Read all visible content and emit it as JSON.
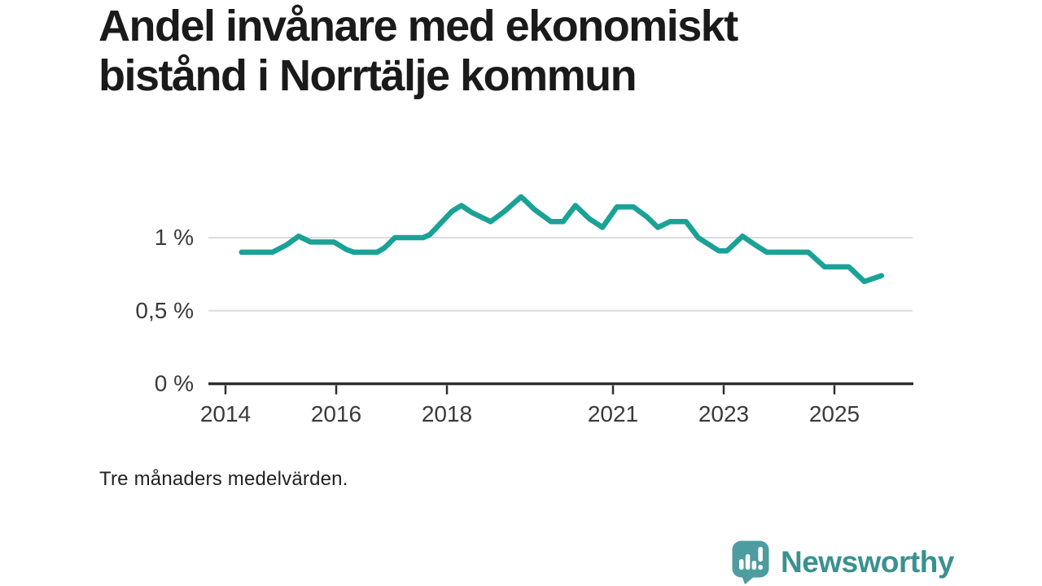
{
  "title": {
    "text": "Andel invånare med ekonomiskt bistånd i Norrtälje kommun",
    "lines": [
      "Andel invånare med ekonomiskt",
      "bistånd i Norrtälje kommun"
    ]
  },
  "footnote": "Tre månaders medelvärden.",
  "logo": {
    "wordmark": "Newsworthy",
    "icon": "speech-bubble-bar-chart-exclamation"
  },
  "colors": {
    "line": "#19A295",
    "grid": "#DCDCDC",
    "axis": "#2E2E2E",
    "tick_text": "#3A3A3A",
    "title_text": "#1A1A1A",
    "logo_bubble": "#4C9CA0",
    "logo_text": "#3A918F",
    "background": "#FFFFFF"
  },
  "chart_data": {
    "type": "line",
    "title": "Andel invånare med ekonomiskt bistånd i Norrtälje kommun",
    "note": "Tre månaders medelvärden.",
    "unit": "%",
    "grid": "horizontal",
    "legend": "none",
    "xlim": [
      2013.69,
      2026.4
    ],
    "ylim": [
      0,
      1.35
    ],
    "yticks": [
      {
        "value": 0,
        "label": "0 %"
      },
      {
        "value": 0.5,
        "label": "0,5 %"
      },
      {
        "value": 1,
        "label": "1 %"
      }
    ],
    "xticks": [
      {
        "value": 2014,
        "label": "2014"
      },
      {
        "value": 2016,
        "label": "2016"
      },
      {
        "value": 2018,
        "label": "2018"
      },
      {
        "value": 2021,
        "label": "2021"
      },
      {
        "value": 2023,
        "label": "2023"
      },
      {
        "value": 2025,
        "label": "2025"
      }
    ],
    "x": [
      2014.29,
      2014.85,
      2015.1,
      2015.32,
      2015.54,
      2015.96,
      2016.18,
      2016.32,
      2016.74,
      2016.87,
      2017.06,
      2017.57,
      2017.69,
      2017.94,
      2018.09,
      2018.26,
      2018.46,
      2018.79,
      2019.04,
      2019.34,
      2019.59,
      2019.88,
      2020.1,
      2020.32,
      2020.57,
      2020.81,
      2021.07,
      2021.37,
      2021.62,
      2021.81,
      2022.03,
      2022.32,
      2022.54,
      2022.91,
      2023.06,
      2023.34,
      2023.57,
      2023.78,
      2024.53,
      2024.82,
      2025.26,
      2025.54,
      2025.85
    ],
    "series": [
      {
        "name": "Andel invånare med ekonomiskt bistånd",
        "values": [
          0.9,
          0.9,
          0.95,
          1.01,
          0.97,
          0.97,
          0.92,
          0.9,
          0.9,
          0.93,
          1.0,
          1.0,
          1.02,
          1.12,
          1.18,
          1.22,
          1.17,
          1.11,
          1.18,
          1.28,
          1.19,
          1.11,
          1.11,
          1.22,
          1.13,
          1.07,
          1.21,
          1.21,
          1.14,
          1.07,
          1.11,
          1.11,
          1.0,
          0.91,
          0.91,
          1.01,
          0.95,
          0.9,
          0.9,
          0.8,
          0.8,
          0.7,
          0.74
        ]
      }
    ],
    "line_color": "#19A295"
  }
}
